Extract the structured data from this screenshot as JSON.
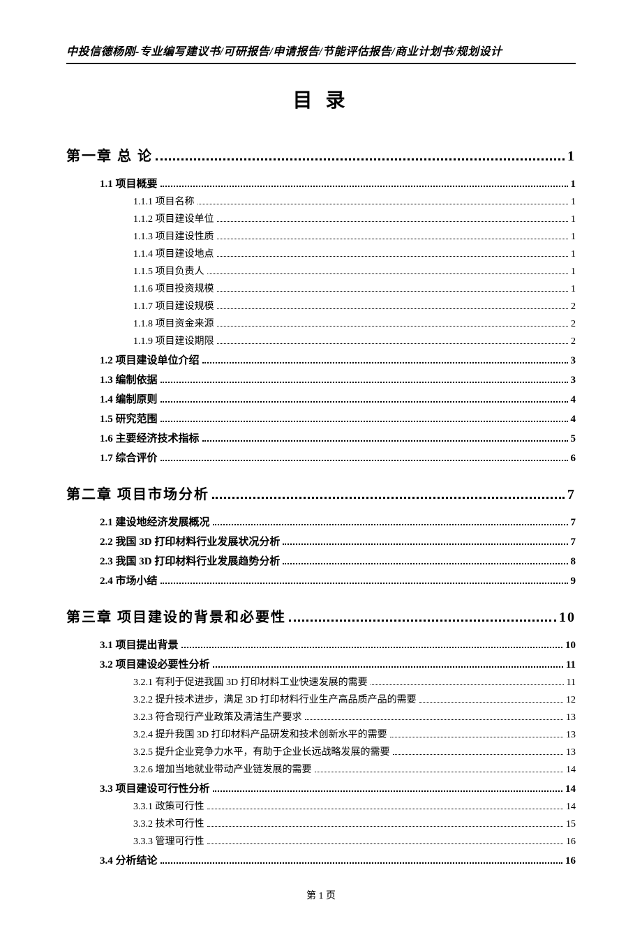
{
  "header_text": "中投信德杨刚-专业编写建议书/可研报告/申请报告/节能评估报告/商业计划书/规划设计",
  "title": "目 录",
  "footer": "第 1 页",
  "colors": {
    "text": "#000000",
    "background": "#ffffff",
    "rule": "#000000"
  },
  "fonts": {
    "header": "KaiTi",
    "body": "SimSun",
    "title_size": 28,
    "l1_size": 20,
    "l2_size": 15,
    "l3_size": 14
  },
  "entries": [
    {
      "level": 1,
      "label": "第一章 总 论",
      "page": "1"
    },
    {
      "level": 2,
      "label": "1.1 项目概要",
      "page": "1"
    },
    {
      "level": 3,
      "label": "1.1.1 项目名称",
      "page": "1"
    },
    {
      "level": 3,
      "label": "1.1.2 项目建设单位",
      "page": "1"
    },
    {
      "level": 3,
      "label": "1.1.3 项目建设性质",
      "page": "1"
    },
    {
      "level": 3,
      "label": "1.1.4 项目建设地点",
      "page": "1"
    },
    {
      "level": 3,
      "label": "1.1.5 项目负责人",
      "page": "1"
    },
    {
      "level": 3,
      "label": "1.1.6 项目投资规模",
      "page": "1"
    },
    {
      "level": 3,
      "label": "1.1.7 项目建设规模",
      "page": "2"
    },
    {
      "level": 3,
      "label": "1.1.8 项目资金来源",
      "page": "2"
    },
    {
      "level": 3,
      "label": "1.1.9 项目建设期限",
      "page": "2"
    },
    {
      "level": 2,
      "label": "1.2 项目建设单位介绍",
      "page": "3"
    },
    {
      "level": 2,
      "label": "1.3 编制依据",
      "page": "3"
    },
    {
      "level": 2,
      "label": "1.4 编制原则",
      "page": "4"
    },
    {
      "level": 2,
      "label": "1.5 研究范围",
      "page": "4"
    },
    {
      "level": 2,
      "label": "1.6 主要经济技术指标",
      "page": "5"
    },
    {
      "level": 2,
      "label": "1.7 综合评价",
      "page": "6"
    },
    {
      "level": 1,
      "label": "第二章 项目市场分析",
      "page": "7"
    },
    {
      "level": 2,
      "label": "2.1 建设地经济发展概况",
      "page": "7"
    },
    {
      "level": 2,
      "label": "2.2 我国 3D 打印材料行业发展状况分析",
      "page": "7"
    },
    {
      "level": 2,
      "label": "2.3 我国 3D 打印材料行业发展趋势分析",
      "page": "8"
    },
    {
      "level": 2,
      "label": "2.4 市场小结",
      "page": "9"
    },
    {
      "level": 1,
      "label": "第三章 项目建设的背景和必要性",
      "page": "10"
    },
    {
      "level": 2,
      "label": "3.1 项目提出背景",
      "page": "10"
    },
    {
      "level": 2,
      "label": "3.2 项目建设必要性分析",
      "page": "11"
    },
    {
      "level": 3,
      "label": "3.2.1 有利于促进我国 3D 打印材料工业快速发展的需要",
      "page": "11"
    },
    {
      "level": 3,
      "label": "3.2.2 提升技术进步，满足 3D 打印材料行业生产高品质产品的需要",
      "page": "12"
    },
    {
      "level": 3,
      "label": "3.2.3 符合现行产业政策及清洁生产要求",
      "page": "13"
    },
    {
      "level": 3,
      "label": "3.2.4 提升我国 3D 打印材料产品研发和技术创新水平的需要",
      "page": "13"
    },
    {
      "level": 3,
      "label": "3.2.5 提升企业竞争力水平，有助于企业长远战略发展的需要",
      "page": "13"
    },
    {
      "level": 3,
      "label": "3.2.6 增加当地就业带动产业链发展的需要",
      "page": "14"
    },
    {
      "level": 2,
      "label": "3.3 项目建设可行性分析",
      "page": "14"
    },
    {
      "level": 3,
      "label": "3.3.1 政策可行性",
      "page": "14"
    },
    {
      "level": 3,
      "label": "3.3.2 技术可行性",
      "page": "15"
    },
    {
      "level": 3,
      "label": "3.3.3 管理可行性",
      "page": "16"
    },
    {
      "level": 2,
      "label": "3.4 分析结论",
      "page": "16"
    }
  ]
}
